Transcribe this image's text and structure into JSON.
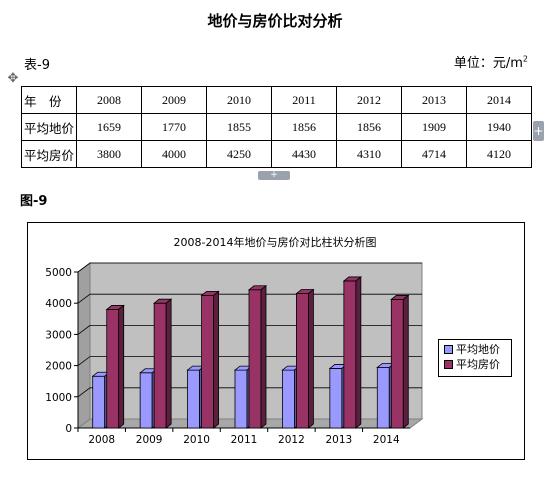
{
  "document": {
    "title": "地价与房价比对分析",
    "table_label": "表-9",
    "unit_label": "单位：元/m",
    "unit_sup": "2",
    "figure_label": "图-9"
  },
  "table": {
    "header_label": "年　份",
    "years": [
      "2008",
      "2009",
      "2010",
      "2011",
      "2012",
      "2013",
      "2014"
    ],
    "rows": [
      {
        "label": "平均地价",
        "values": [
          "1659",
          "1770",
          "1855",
          "1856",
          "1856",
          "1909",
          "1940"
        ]
      },
      {
        "label": "平均房价",
        "values": [
          "3800",
          "4000",
          "4250",
          "4430",
          "4310",
          "4714",
          "4120"
        ]
      }
    ]
  },
  "editor_controls": {
    "move_handle_glyph": "✥",
    "add_column_glyph": "+",
    "add_row_glyph": "+"
  },
  "chart_data": {
    "type": "bar",
    "title": "2008-2014年地价与房价对比柱状分析图",
    "categories": [
      "2008",
      "2009",
      "2010",
      "2011",
      "2012",
      "2013",
      "2014"
    ],
    "series": [
      {
        "name": "平均地价",
        "values": [
          1659,
          1770,
          1855,
          1856,
          1856,
          1909,
          1940
        ],
        "color": "#9999ff"
      },
      {
        "name": "平均房价",
        "values": [
          3800,
          4000,
          4250,
          4430,
          4310,
          4714,
          4120
        ],
        "color": "#993366"
      }
    ],
    "ylim": [
      0,
      5000
    ],
    "yticks": [
      "0",
      "1000",
      "2000",
      "3000",
      "4000",
      "5000"
    ],
    "grid": true,
    "legend": "right",
    "style": "3d",
    "wall_color": "#c0c0c0"
  }
}
